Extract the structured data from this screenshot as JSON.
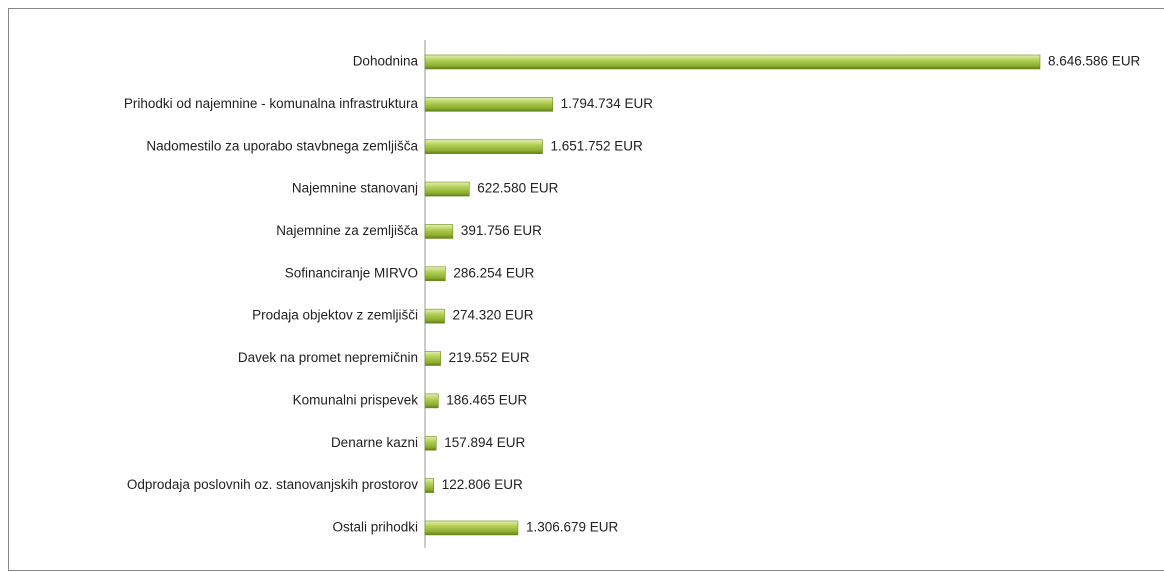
{
  "chart_data": {
    "type": "bar",
    "orientation": "horizontal",
    "categories": [
      "Dohodnina",
      "Prihodki od najemnine - komunalna infrastruktura",
      "Nadomestilo za uporabo stavbnega zemljišča",
      "Najemnine stanovanj",
      "Najemnine za zemljišča",
      "Sofinanciranje MIRVO",
      "Prodaja objektov z zemljišči",
      "Davek na promet nepremičnin",
      "Komunalni prispevek",
      "Denarne kazni",
      "Odprodaja poslovnih oz. stanovanjskih prostorov",
      "Ostali prihodki"
    ],
    "values": [
      8646586,
      1794734,
      1651752,
      622580,
      391756,
      286254,
      274320,
      219552,
      186465,
      157894,
      122806,
      1306679
    ],
    "value_labels": [
      "8.646.586 EUR",
      "1.794.734 EUR",
      "1.651.752 EUR",
      "622.580 EUR",
      "391.756 EUR",
      "286.254 EUR",
      "274.320 EUR",
      "219.552 EUR",
      "186.465 EUR",
      "157.894 EUR",
      "122.806 EUR",
      "1.306.679 EUR"
    ],
    "color": "#9bbb3c"
  }
}
